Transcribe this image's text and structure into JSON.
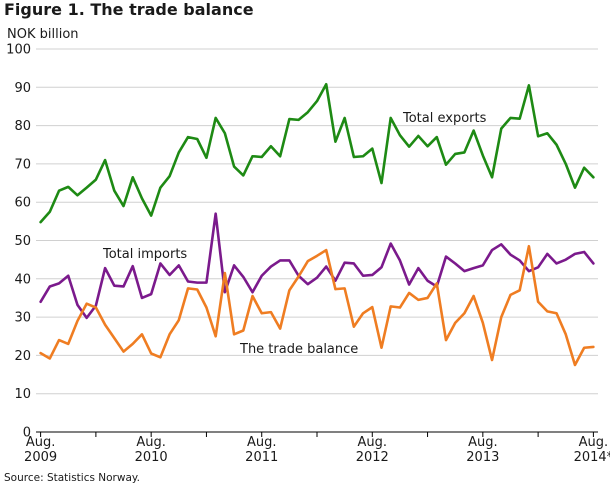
{
  "figure": {
    "title": "Figure 1. The trade balance",
    "source": "Source: Statistics Norway."
  },
  "chart_data": {
    "type": "line",
    "ylabel": "NOK billion",
    "ylim": [
      0,
      100
    ],
    "yticks": [
      0,
      10,
      20,
      30,
      40,
      50,
      60,
      70,
      80,
      90,
      100
    ],
    "grid": "horizontal",
    "x_start": "2009-08",
    "x": [
      "2009-08",
      "2009-09",
      "2009-10",
      "2009-11",
      "2009-12",
      "2010-01",
      "2010-02",
      "2010-03",
      "2010-04",
      "2010-05",
      "2010-06",
      "2010-07",
      "2010-08",
      "2010-09",
      "2010-10",
      "2010-11",
      "2010-12",
      "2011-01",
      "2011-02",
      "2011-03",
      "2011-04",
      "2011-05",
      "2011-06",
      "2011-07",
      "2011-08",
      "2011-09",
      "2011-10",
      "2011-11",
      "2011-12",
      "2012-01",
      "2012-02",
      "2012-03",
      "2012-04",
      "2012-05",
      "2012-06",
      "2012-07",
      "2012-08",
      "2012-09",
      "2012-10",
      "2012-11",
      "2012-12",
      "2013-01",
      "2013-02",
      "2013-03",
      "2013-04",
      "2013-05",
      "2013-06",
      "2013-07",
      "2013-08",
      "2013-09",
      "2013-10",
      "2013-11",
      "2013-12",
      "2014-01",
      "2014-02",
      "2014-03",
      "2014-04",
      "2014-05",
      "2014-06",
      "2014-07",
      "2014-08"
    ],
    "x_tick_labels": [
      {
        "index": 0,
        "line1": "Aug.",
        "line2": "2009"
      },
      {
        "index": 12,
        "line1": "Aug.",
        "line2": "2010"
      },
      {
        "index": 24,
        "line1": "Aug.",
        "line2": "2011"
      },
      {
        "index": 36,
        "line1": "Aug.",
        "line2": "2012"
      },
      {
        "index": 48,
        "line1": "Aug.",
        "line2": "2013"
      },
      {
        "index": 60,
        "line1": "Aug.",
        "line2": "2014*"
      }
    ],
    "series": [
      {
        "name": "Total exports",
        "color": "#1e8a14",
        "values": [
          54.8,
          57.5,
          63.0,
          64.0,
          61.8,
          63.8,
          65.9,
          71.0,
          63.0,
          59.0,
          66.5,
          61.0,
          56.5,
          63.8,
          66.8,
          73.0,
          77.0,
          76.5,
          71.6,
          82.0,
          78.0,
          69.3,
          67.0,
          72.0,
          71.8,
          74.6,
          72.0,
          81.7,
          81.5,
          83.5,
          86.4,
          90.8,
          75.8,
          82.0,
          71.8,
          72.0,
          74.0,
          65.0,
          82.0,
          77.5,
          74.5,
          77.3,
          74.6,
          77.0,
          69.8,
          72.6,
          73.0,
          78.7,
          72.2,
          66.5,
          79.2,
          82.0,
          81.8,
          90.5,
          77.2,
          78.0,
          75.0,
          70.0,
          63.8,
          69.0,
          66.5
        ]
      },
      {
        "name": "Total imports",
        "color": "#7b1a8c",
        "values": [
          34.0,
          38.0,
          38.8,
          40.8,
          33.2,
          29.8,
          33.0,
          42.8,
          38.2,
          38.0,
          43.3,
          35.0,
          36.0,
          44.0,
          41.0,
          43.5,
          39.3,
          39.0,
          39.0,
          57.0,
          36.5,
          43.5,
          40.5,
          36.5,
          40.8,
          43.2,
          44.8,
          44.8,
          40.8,
          38.6,
          40.3,
          43.2,
          39.5,
          44.2,
          44.0,
          40.8,
          41.0,
          43.0,
          49.2,
          44.8,
          38.5,
          42.8,
          39.5,
          38.0,
          45.8,
          44.0,
          42.0,
          42.8,
          43.5,
          47.5,
          49.0,
          46.3,
          44.8,
          42.0,
          43.0,
          46.5,
          44.0,
          45.0,
          46.5,
          47.0,
          44.0
        ]
      },
      {
        "name": "The trade balance",
        "color": "#ef7d22",
        "values": [
          20.6,
          19.2,
          24.0,
          23.0,
          29.0,
          33.5,
          32.5,
          28.0,
          24.5,
          21.0,
          23.0,
          25.5,
          20.5,
          19.5,
          25.5,
          29.2,
          37.5,
          37.2,
          32.5,
          25.0,
          41.5,
          25.5,
          26.5,
          35.5,
          31.0,
          31.3,
          27.0,
          37.0,
          40.6,
          44.6,
          46.0,
          47.5,
          37.3,
          37.5,
          27.5,
          31.0,
          32.6,
          22.0,
          32.8,
          32.5,
          36.3,
          34.5,
          35.0,
          38.8,
          24.0,
          28.5,
          31.0,
          35.5,
          28.5,
          18.8,
          30.0,
          35.8,
          37.0,
          48.5,
          34.0,
          31.5,
          31.0,
          25.5,
          17.5,
          22.0,
          22.2
        ]
      }
    ],
    "annotations": [
      "Total exports",
      "Total imports",
      "The trade balance"
    ],
    "legend": "inline labels"
  }
}
